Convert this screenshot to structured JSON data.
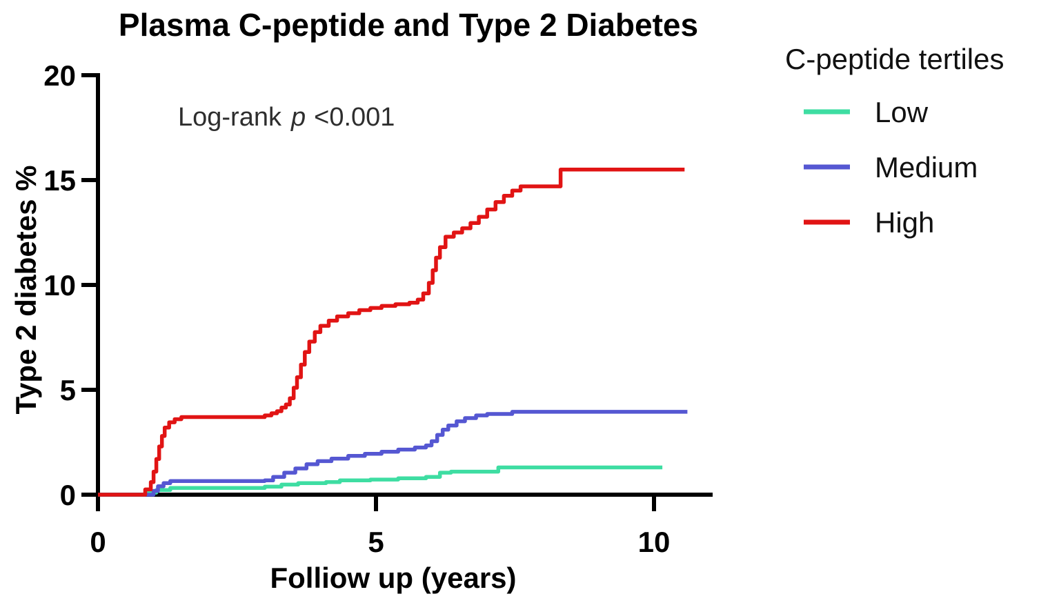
{
  "chart_data": {
    "type": "line",
    "subtype": "kaplan-meier-cumulative-incidence-step-curves",
    "title": "Plasma C-peptide and Type 2 Diabetes",
    "xlabel": "Folliow up (years)",
    "ylabel": "Type 2 diabetes %",
    "xlim": [
      0,
      11
    ],
    "ylim": [
      0,
      20
    ],
    "x_ticks": [
      0,
      5,
      10
    ],
    "y_ticks": [
      0,
      5,
      10,
      15,
      20
    ],
    "grid": false,
    "annotation": {
      "prefix": "Log-rank",
      "symbol": "p",
      "value": "<0.001",
      "full_text": "Log-rank p <0.001"
    },
    "legend": {
      "title": "C-peptide tertiles",
      "position": "right"
    },
    "axis_color": "#000000",
    "series": [
      {
        "name": "Low",
        "color": "#3edda2",
        "points": [
          [
            0,
            0
          ],
          [
            0.85,
            0.1
          ],
          [
            1.05,
            0.22
          ],
          [
            1.3,
            0.32
          ],
          [
            3.0,
            0.38
          ],
          [
            3.3,
            0.48
          ],
          [
            3.6,
            0.55
          ],
          [
            4.1,
            0.6
          ],
          [
            4.35,
            0.68
          ],
          [
            4.9,
            0.72
          ],
          [
            5.4,
            0.78
          ],
          [
            5.9,
            0.85
          ],
          [
            6.15,
            1.05
          ],
          [
            6.35,
            1.1
          ],
          [
            7.2,
            1.3
          ],
          [
            10.15,
            1.3
          ]
        ]
      },
      {
        "name": "Medium",
        "color": "#5557d2",
        "points": [
          [
            0,
            0
          ],
          [
            1.0,
            0.18
          ],
          [
            1.08,
            0.4
          ],
          [
            1.18,
            0.55
          ],
          [
            1.3,
            0.65
          ],
          [
            3.0,
            0.68
          ],
          [
            3.15,
            0.85
          ],
          [
            3.35,
            1.05
          ],
          [
            3.55,
            1.25
          ],
          [
            3.75,
            1.45
          ],
          [
            3.95,
            1.6
          ],
          [
            4.2,
            1.72
          ],
          [
            4.5,
            1.85
          ],
          [
            4.8,
            1.95
          ],
          [
            5.1,
            2.05
          ],
          [
            5.4,
            2.15
          ],
          [
            5.7,
            2.25
          ],
          [
            5.9,
            2.35
          ],
          [
            6.0,
            2.55
          ],
          [
            6.1,
            2.85
          ],
          [
            6.2,
            3.1
          ],
          [
            6.3,
            3.3
          ],
          [
            6.45,
            3.5
          ],
          [
            6.6,
            3.65
          ],
          [
            6.8,
            3.78
          ],
          [
            7.0,
            3.85
          ],
          [
            7.45,
            3.95
          ],
          [
            10.6,
            3.95
          ]
        ]
      },
      {
        "name": "High",
        "color": "#e11414",
        "points": [
          [
            0,
            0
          ],
          [
            0.85,
            0.25
          ],
          [
            0.95,
            0.6
          ],
          [
            1.0,
            1.1
          ],
          [
            1.05,
            1.7
          ],
          [
            1.1,
            2.3
          ],
          [
            1.15,
            2.8
          ],
          [
            1.2,
            3.2
          ],
          [
            1.28,
            3.45
          ],
          [
            1.38,
            3.6
          ],
          [
            1.5,
            3.7
          ],
          [
            2.85,
            3.7
          ],
          [
            3.0,
            3.78
          ],
          [
            3.12,
            3.88
          ],
          [
            3.22,
            3.98
          ],
          [
            3.3,
            4.15
          ],
          [
            3.38,
            4.3
          ],
          [
            3.45,
            4.6
          ],
          [
            3.52,
            5.1
          ],
          [
            3.58,
            5.6
          ],
          [
            3.65,
            6.2
          ],
          [
            3.72,
            6.8
          ],
          [
            3.8,
            7.3
          ],
          [
            3.9,
            7.75
          ],
          [
            4.0,
            8.05
          ],
          [
            4.15,
            8.3
          ],
          [
            4.3,
            8.5
          ],
          [
            4.5,
            8.65
          ],
          [
            4.7,
            8.8
          ],
          [
            4.9,
            8.9
          ],
          [
            5.1,
            9.0
          ],
          [
            5.35,
            9.08
          ],
          [
            5.6,
            9.15
          ],
          [
            5.75,
            9.3
          ],
          [
            5.85,
            9.6
          ],
          [
            5.95,
            10.1
          ],
          [
            6.02,
            10.7
          ],
          [
            6.08,
            11.3
          ],
          [
            6.15,
            11.8
          ],
          [
            6.25,
            12.3
          ],
          [
            6.4,
            12.5
          ],
          [
            6.55,
            12.7
          ],
          [
            6.7,
            12.95
          ],
          [
            6.85,
            13.25
          ],
          [
            7.0,
            13.6
          ],
          [
            7.15,
            13.95
          ],
          [
            7.3,
            14.25
          ],
          [
            7.45,
            14.5
          ],
          [
            7.6,
            14.7
          ],
          [
            8.25,
            14.7
          ],
          [
            8.32,
            15.5
          ],
          [
            10.55,
            15.5
          ]
        ]
      }
    ]
  }
}
